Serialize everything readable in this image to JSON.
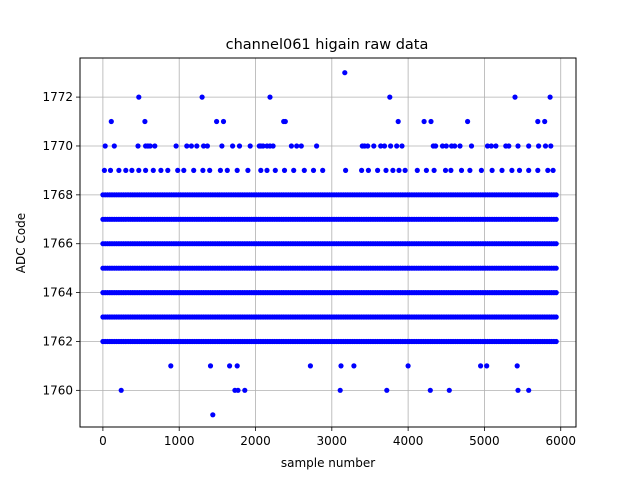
{
  "chart_data": {
    "type": "scatter",
    "title": "channel061 higain raw data",
    "xlabel": "sample number",
    "ylabel": "ADC Code",
    "xlim": [
      -300,
      6200
    ],
    "ylim": [
      1758.5,
      1773.6
    ],
    "xticks": [
      0,
      1000,
      2000,
      3000,
      4000,
      5000,
      6000
    ],
    "yticks": [
      1760,
      1762,
      1764,
      1766,
      1768,
      1770,
      1772
    ],
    "grid": true,
    "color": "#0000ff",
    "dense_levels": [
      1762,
      1763,
      1764,
      1765,
      1766,
      1767,
      1768
    ],
    "dense_x_range": [
      0,
      5940
    ],
    "sparse_points": {
      "1759": [
        1440
      ],
      "1760": [
        240,
        1730,
        1770,
        1860,
        3110,
        3720,
        4290,
        4540,
        5440,
        5580
      ],
      "1761": [
        890,
        1410,
        1660,
        1760,
        2720,
        3120,
        3290,
        4000,
        4950,
        5030,
        5430
      ],
      "1769": [
        20,
        100,
        210,
        300,
        380,
        470,
        560,
        660,
        760,
        850,
        980,
        1060,
        1190,
        1310,
        1400,
        1540,
        1630,
        1760,
        1900,
        2070,
        2150,
        2260,
        2380,
        2500,
        2640,
        2760,
        2880,
        3180,
        3390,
        3480,
        3600,
        3710,
        3800,
        3880,
        3960,
        4120,
        4240,
        4340,
        4490,
        4560,
        4700,
        4810,
        4960,
        5100,
        5230,
        5360,
        5460,
        5580,
        5700,
        5830,
        5900
      ],
      "1770": [
        30,
        150,
        460,
        560,
        590,
        620,
        680,
        960,
        1100,
        1160,
        1230,
        1320,
        1370,
        1560,
        1700,
        1790,
        1930,
        2050,
        2070,
        2100,
        2150,
        2190,
        2230,
        2470,
        2540,
        2600,
        2800,
        3400,
        3430,
        3470,
        3550,
        3640,
        3690,
        3770,
        3850,
        3920,
        4330,
        4360,
        4450,
        4500,
        4570,
        4610,
        4680,
        4830,
        5040,
        5090,
        5150,
        5280,
        5320,
        5440,
        5580,
        5710,
        5800,
        5870
      ],
      "1771": [
        110,
        550,
        1490,
        1580,
        2370,
        2390,
        3870,
        4210,
        4300,
        4780,
        5700,
        5790
      ],
      "1772": [
        470,
        1300,
        2190,
        3760,
        5400,
        5860
      ],
      "1773": [
        3170
      ]
    }
  }
}
